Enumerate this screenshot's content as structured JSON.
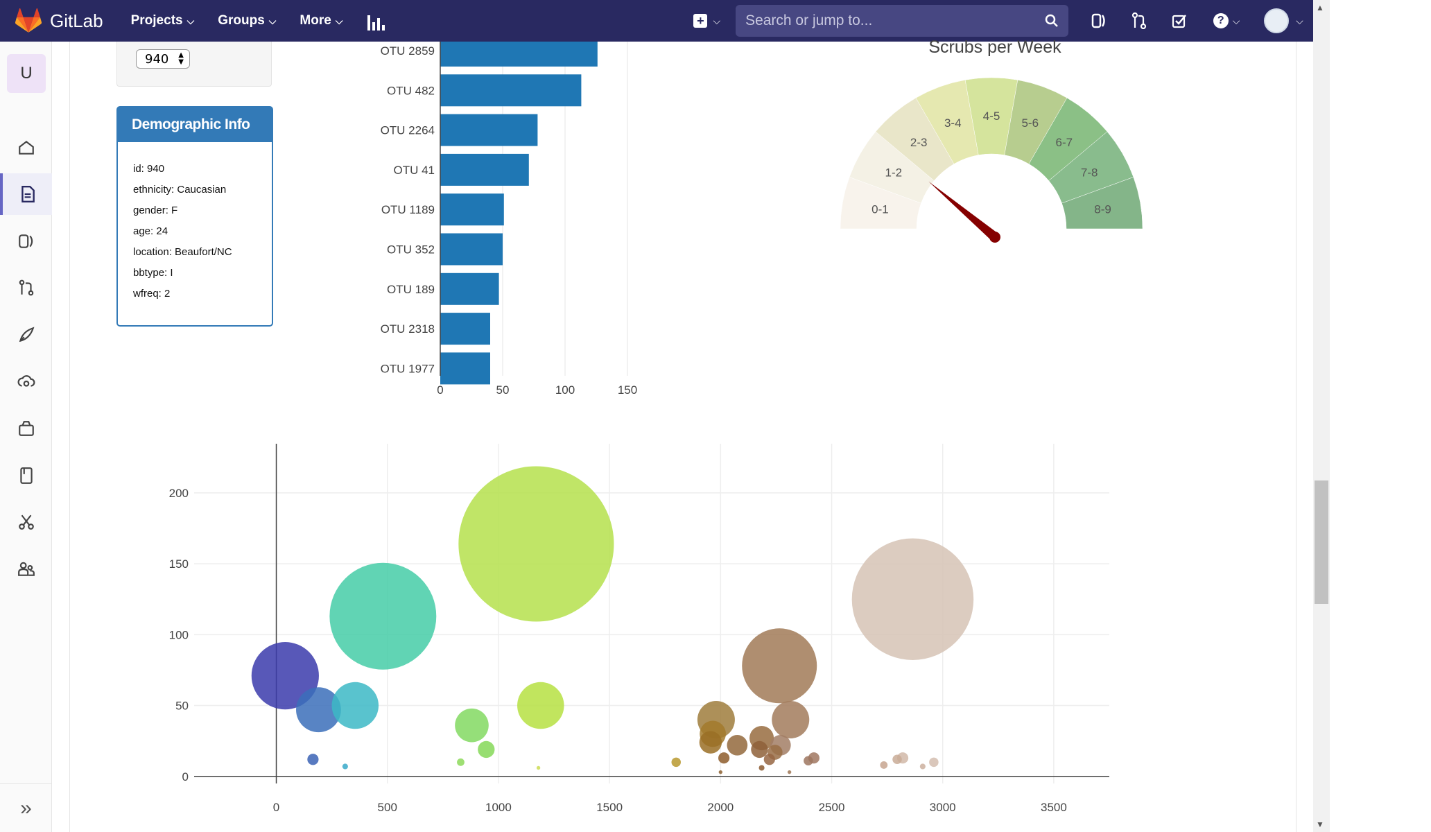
{
  "navbar": {
    "brand": "GitLab",
    "menus": [
      {
        "label": "Projects"
      },
      {
        "label": "Groups"
      },
      {
        "label": "More"
      }
    ],
    "search_placeholder": "Search or jump to..."
  },
  "sidebar": {
    "project_initial": "U",
    "items": [
      "project-overview",
      "repository",
      "issues",
      "merge-requests",
      "ci-cd",
      "operations",
      "packages",
      "wiki",
      "snippets",
      "members"
    ]
  },
  "selector": {
    "value": "940"
  },
  "demographic": {
    "title": "Demographic Info",
    "lines": [
      "id: 940",
      "ethnicity: Caucasian",
      "gender: F",
      "age: 24",
      "location: Beaufort/NC",
      "bbtype: I",
      "wfreq: 2"
    ]
  },
  "colors": {
    "navbar": "#292961",
    "bar": "#1f77b4",
    "panel": "#337ab7",
    "needle": "#850000"
  },
  "chart_data": [
    {
      "type": "bar",
      "orientation": "horizontal",
      "categories": [
        "OTU 2859",
        "OTU 482",
        "OTU 2264",
        "OTU 41",
        "OTU 1189",
        "OTU 352",
        "OTU 189",
        "OTU 2318",
        "OTU 1977"
      ],
      "values": [
        126,
        113,
        78,
        71,
        51,
        50,
        47,
        40,
        40
      ],
      "xticks": [
        "0",
        "50",
        "100",
        "150"
      ],
      "xlim": [
        0,
        150
      ]
    },
    {
      "type": "gauge",
      "title": "Scrubs per Week",
      "sections": [
        "0-1",
        "1-2",
        "2-3",
        "3-4",
        "4-5",
        "5-6",
        "6-7",
        "7-8",
        "8-9"
      ],
      "colors": [
        "#f8f3ec",
        "#f4f1e5",
        "#e9e6c9",
        "#e5e8b0",
        "#d5e49d",
        "#b7cd8f",
        "#8bc086",
        "#89bc8d",
        "#84b589"
      ],
      "value": 2,
      "range": [
        0,
        9
      ]
    },
    {
      "type": "scatter",
      "subtype": "bubble",
      "xticks": [
        "0",
        "500",
        "1000",
        "1500",
        "2000",
        "2500",
        "3000",
        "3500"
      ],
      "yticks": [
        "0",
        "50",
        "100",
        "150",
        "200"
      ],
      "xlim": [
        -370,
        3750
      ],
      "ylim": [
        -5,
        220
      ],
      "points": [
        {
          "x": 40,
          "y": 71,
          "r": 36,
          "c": "#3b3bac"
        },
        {
          "x": 190,
          "y": 47,
          "r": 24,
          "c": "#3b6fba"
        },
        {
          "x": 480,
          "y": 113,
          "r": 57,
          "c": "#45cca7"
        },
        {
          "x": 355,
          "y": 50,
          "r": 25,
          "c": "#3cb8c6"
        },
        {
          "x": 165,
          "y": 12,
          "r": 6,
          "c": "#3b63b5"
        },
        {
          "x": 310,
          "y": 7,
          "r": 3,
          "c": "#38a9c9"
        },
        {
          "x": 1170,
          "y": 164,
          "r": 83,
          "c": "#b5e04c"
        },
        {
          "x": 1190,
          "y": 50,
          "r": 25,
          "c": "#b6e042"
        },
        {
          "x": 880,
          "y": 36,
          "r": 18,
          "c": "#82d962"
        },
        {
          "x": 945,
          "y": 19,
          "r": 9,
          "c": "#85d858"
        },
        {
          "x": 830,
          "y": 10,
          "r": 4,
          "c": "#8dd95a"
        },
        {
          "x": 1180,
          "y": 6,
          "r": 2,
          "c": "#cddc52"
        },
        {
          "x": 1800,
          "y": 10,
          "r": 5,
          "c": "#b8992f"
        },
        {
          "x": 1980,
          "y": 40,
          "r": 20,
          "c": "#9f7c3c"
        },
        {
          "x": 1965,
          "y": 30,
          "r": 14,
          "c": "#a27a2b"
        },
        {
          "x": 1955,
          "y": 24,
          "r": 12,
          "c": "#9a6e26"
        },
        {
          "x": 2265,
          "y": 78,
          "r": 40,
          "c": "#a17a57"
        },
        {
          "x": 2315,
          "y": 40,
          "r": 20,
          "c": "#a27b5c"
        },
        {
          "x": 2185,
          "y": 27,
          "r": 13,
          "c": "#986c3f"
        },
        {
          "x": 2075,
          "y": 22,
          "r": 11,
          "c": "#93683c"
        },
        {
          "x": 2270,
          "y": 22,
          "r": 11,
          "c": "#a27e65"
        },
        {
          "x": 2175,
          "y": 19,
          "r": 9,
          "c": "#8e6038"
        },
        {
          "x": 2245,
          "y": 17,
          "r": 8,
          "c": "#996d45"
        },
        {
          "x": 2015,
          "y": 13,
          "r": 6,
          "c": "#8d5c2a"
        },
        {
          "x": 2220,
          "y": 12,
          "r": 6,
          "c": "#966643"
        },
        {
          "x": 2420,
          "y": 13,
          "r": 6,
          "c": "#a07760"
        },
        {
          "x": 2395,
          "y": 11,
          "r": 5,
          "c": "#9e755f"
        },
        {
          "x": 2865,
          "y": 125,
          "r": 65,
          "c": "#d6c3b5"
        },
        {
          "x": 2820,
          "y": 13,
          "r": 6,
          "c": "#d1b8a8"
        },
        {
          "x": 2795,
          "y": 12,
          "r": 5,
          "c": "#c9ab97"
        },
        {
          "x": 2960,
          "y": 10,
          "r": 5,
          "c": "#d3bdaf"
        },
        {
          "x": 2735,
          "y": 8,
          "r": 4,
          "c": "#c7a58f"
        },
        {
          "x": 2910,
          "y": 7,
          "r": 3,
          "c": "#ccb09f"
        },
        {
          "x": 2185,
          "y": 6,
          "r": 3,
          "c": "#8c5a30"
        },
        {
          "x": 2000,
          "y": 3,
          "r": 2,
          "c": "#8d6231"
        },
        {
          "x": 2310,
          "y": 3,
          "r": 2,
          "c": "#9e7655"
        }
      ]
    }
  ]
}
